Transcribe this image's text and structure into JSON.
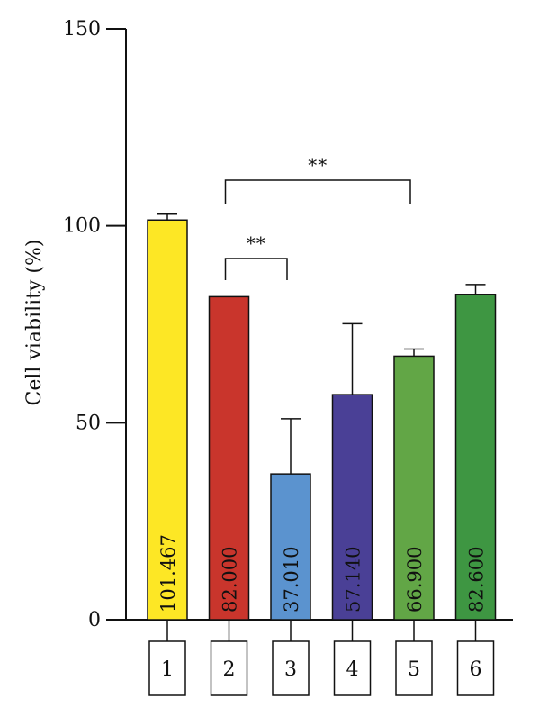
{
  "chart_data": {
    "type": "bar",
    "ylabel": "Cell viability (%)",
    "ylim": [
      0,
      150
    ],
    "yticks": [
      0,
      50,
      100,
      150
    ],
    "categories": [
      "1",
      "2",
      "3",
      "4",
      "5",
      "6"
    ],
    "values": [
      101.467,
      82.0,
      37.01,
      57.14,
      66.9,
      82.6
    ],
    "value_labels": [
      "101.467",
      "82.000",
      "37.010",
      "57.140",
      "66.900",
      "82.600"
    ],
    "errors": [
      1.5,
      0,
      14,
      18,
      1.8,
      2.5
    ],
    "colors": [
      "#fde725",
      "#c9352c",
      "#5b93cf",
      "#4a4096",
      "#62a646",
      "#3e9642"
    ],
    "significance": [
      {
        "from": "2",
        "to": "3",
        "label": "**"
      },
      {
        "from": "2",
        "to": "5",
        "label": "**"
      }
    ],
    "grid": false,
    "legend": "none"
  }
}
